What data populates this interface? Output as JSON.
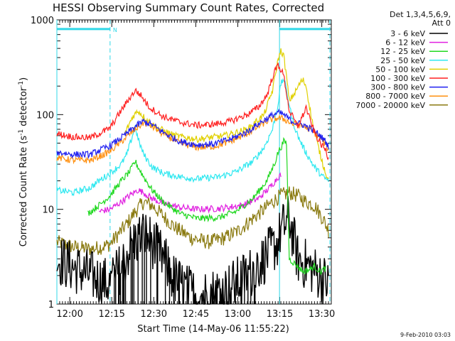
{
  "chart_data": {
    "type": "line",
    "title": "HESSI Observing Summary Count Rates, Corrected",
    "xlabel": "Start Time (14-May-06 11:55:22)",
    "ylabel_main": "Corrected Count Rate (s",
    "ylabel_sup1": "-1",
    "ylabel_mid": " detector",
    "ylabel_sup2": "-1",
    "ylabel_end": ")",
    "y_scale": "log",
    "ylim": [
      1,
      1000
    ],
    "xlim_min": [
      0,
      98
    ],
    "y_ticks": [
      {
        "value": 1,
        "label": "1"
      },
      {
        "value": 10,
        "label": "10"
      },
      {
        "value": 100,
        "label": "100"
      },
      {
        "value": 1000,
        "label": "1000"
      }
    ],
    "x_ticks": [
      {
        "value": 4.6,
        "label": "12:00"
      },
      {
        "value": 19.6,
        "label": "12:15"
      },
      {
        "value": 34.6,
        "label": "12:30"
      },
      {
        "value": 49.6,
        "label": "12:45"
      },
      {
        "value": 64.6,
        "label": "13:00"
      },
      {
        "value": 79.6,
        "label": "13:15"
      },
      {
        "value": 94.6,
        "label": "13:30"
      }
    ],
    "legend_header_1": "Det 1,3,4,5,6,9,",
    "legend_header_2": "Att 0",
    "footer_date": "9-Feb-2010 03:03",
    "status_marks": [
      {
        "label": "N",
        "x": [
          0,
          19
        ],
        "y": 800,
        "color": "#30d8e8"
      },
      {
        "label": "",
        "x": [
          79.5,
          97.5
        ],
        "y": 800,
        "color": "#30d8e8"
      }
    ],
    "event_times": [
      0,
      19,
      79.5,
      97.5
    ],
    "series": [
      {
        "name": "3 - 6 keV",
        "color": "#000000",
        "anchors": [
          [
            0,
            3
          ],
          [
            5,
            2.5
          ],
          [
            12,
            2
          ],
          [
            19,
            1.6
          ],
          [
            23,
            2.5
          ],
          [
            27,
            4.3
          ],
          [
            31,
            5.5
          ],
          [
            34,
            4.5
          ],
          [
            38,
            3
          ],
          [
            42,
            1.8
          ],
          [
            50,
            1.2
          ],
          [
            60,
            1.4
          ],
          [
            68,
            2
          ],
          [
            74,
            3
          ],
          [
            79,
            4.5
          ],
          [
            80,
            6
          ],
          [
            83,
            8
          ],
          [
            86,
            3
          ],
          [
            90,
            2.5
          ],
          [
            94,
            2
          ],
          [
            97,
            1.6
          ]
        ]
      },
      {
        "name": "6 - 12 keV",
        "color": "#e020e0",
        "anchors": [
          [
            15,
            9.5
          ],
          [
            19,
            10
          ],
          [
            23,
            12
          ],
          [
            26,
            14
          ],
          [
            29,
            16
          ],
          [
            31,
            15
          ],
          [
            34,
            13
          ],
          [
            38,
            11.5
          ],
          [
            44,
            10.5
          ],
          [
            50,
            10
          ],
          [
            58,
            10.2
          ],
          [
            66,
            11
          ],
          [
            72,
            13
          ],
          [
            76,
            17
          ],
          [
            78,
            20
          ],
          [
            79,
            22
          ],
          [
            80,
            23
          ]
        ]
      },
      {
        "name": "12 - 25 keV",
        "color": "#20d820",
        "anchors": [
          [
            11,
            9
          ],
          [
            15,
            11
          ],
          [
            19,
            14
          ],
          [
            23,
            20
          ],
          [
            26,
            25
          ],
          [
            28,
            32
          ],
          [
            29,
            28
          ],
          [
            31,
            22
          ],
          [
            34,
            16
          ],
          [
            38,
            12
          ],
          [
            44,
            9
          ],
          [
            50,
            8
          ],
          [
            58,
            8.2
          ],
          [
            64,
            9.5
          ],
          [
            70,
            13
          ],
          [
            75,
            20
          ],
          [
            78,
            32
          ],
          [
            79,
            40
          ],
          [
            80,
            45
          ],
          [
            81,
            52
          ],
          [
            82,
            50
          ],
          [
            83,
            3
          ],
          [
            86,
            2.5
          ],
          [
            88,
            2.2
          ],
          [
            90,
            2.3
          ],
          [
            92,
            2.5
          ],
          [
            94,
            2.2
          ],
          [
            96,
            2.4
          ]
        ]
      },
      {
        "name": "25 - 50 keV",
        "color": "#30e8f0",
        "anchors": [
          [
            0,
            16
          ],
          [
            6,
            15
          ],
          [
            12,
            17
          ],
          [
            15,
            20
          ],
          [
            19,
            24
          ],
          [
            23,
            30
          ],
          [
            25,
            38
          ],
          [
            27,
            60
          ],
          [
            28,
            75
          ],
          [
            29,
            55
          ],
          [
            31,
            38
          ],
          [
            34,
            28
          ],
          [
            38,
            24
          ],
          [
            44,
            22
          ],
          [
            50,
            21
          ],
          [
            58,
            22
          ],
          [
            64,
            25
          ],
          [
            70,
            32
          ],
          [
            74,
            45
          ],
          [
            77,
            70
          ],
          [
            79,
            130
          ],
          [
            80,
            210
          ],
          [
            81,
            240
          ],
          [
            82,
            180
          ],
          [
            84,
            90
          ],
          [
            86,
            60
          ],
          [
            88,
            45
          ],
          [
            90,
            35
          ],
          [
            92,
            28
          ],
          [
            95,
            22
          ],
          [
            97,
            20
          ]
        ]
      },
      {
        "name": "50 - 100 keV",
        "color": "#e0d000",
        "anchors": [
          [
            24,
            60
          ],
          [
            27,
            95
          ],
          [
            29,
            110
          ],
          [
            31,
            95
          ],
          [
            35,
            75
          ],
          [
            42,
            60
          ],
          [
            50,
            55
          ],
          [
            60,
            60
          ],
          [
            68,
            70
          ],
          [
            74,
            100
          ],
          [
            77,
            180
          ],
          [
            79,
            380
          ],
          [
            80,
            470
          ],
          [
            81,
            420
          ],
          [
            82,
            250
          ],
          [
            83,
            140
          ],
          [
            85,
            170
          ],
          [
            87,
            220
          ],
          [
            88,
            230
          ],
          [
            89,
            200
          ],
          [
            91,
            90
          ],
          [
            93,
            50
          ],
          [
            95,
            30
          ],
          [
            97,
            20
          ]
        ]
      },
      {
        "name": "100 - 300 keV",
        "color": "#ff2020",
        "anchors": [
          [
            0,
            63
          ],
          [
            6,
            58
          ],
          [
            12,
            57
          ],
          [
            16,
            65
          ],
          [
            19,
            72
          ],
          [
            22,
            100
          ],
          [
            26,
            150
          ],
          [
            28,
            180
          ],
          [
            30,
            160
          ],
          [
            33,
            120
          ],
          [
            38,
            95
          ],
          [
            44,
            83
          ],
          [
            50,
            77
          ],
          [
            56,
            79
          ],
          [
            62,
            85
          ],
          [
            68,
            100
          ],
          [
            72,
            120
          ],
          [
            75,
            160
          ],
          [
            77,
            250
          ],
          [
            79,
            340
          ],
          [
            81,
            260
          ],
          [
            83,
            110
          ],
          [
            86,
            75
          ],
          [
            88,
            100
          ],
          [
            89,
            120
          ],
          [
            90,
            95
          ],
          [
            92,
            65
          ],
          [
            94,
            50
          ],
          [
            96,
            42
          ],
          [
            97,
            34
          ]
        ]
      },
      {
        "name": "300 - 800 keV",
        "color": "#2020f0",
        "anchors": [
          [
            0,
            40
          ],
          [
            6,
            38
          ],
          [
            12,
            38
          ],
          [
            16,
            43
          ],
          [
            19,
            47
          ],
          [
            24,
            60
          ],
          [
            28,
            75
          ],
          [
            31,
            85
          ],
          [
            34,
            78
          ],
          [
            38,
            65
          ],
          [
            44,
            52
          ],
          [
            50,
            48
          ],
          [
            56,
            49
          ],
          [
            62,
            55
          ],
          [
            68,
            66
          ],
          [
            72,
            80
          ],
          [
            76,
            95
          ],
          [
            79,
            105
          ],
          [
            81,
            100
          ],
          [
            84,
            85
          ],
          [
            88,
            78
          ],
          [
            91,
            70
          ],
          [
            94,
            60
          ],
          [
            96,
            52
          ],
          [
            97,
            46
          ]
        ]
      },
      {
        "name": "800 - 7000 keV",
        "color": "#ff9010",
        "anchors": [
          [
            0,
            35
          ],
          [
            6,
            33
          ],
          [
            12,
            33
          ],
          [
            16,
            37
          ],
          [
            19,
            41
          ],
          [
            24,
            55
          ],
          [
            28,
            70
          ],
          [
            31,
            82
          ],
          [
            34,
            75
          ],
          [
            38,
            62
          ],
          [
            44,
            50
          ],
          [
            50,
            45
          ],
          [
            56,
            46
          ],
          [
            62,
            52
          ],
          [
            68,
            63
          ],
          [
            72,
            75
          ],
          [
            76,
            88
          ],
          [
            79,
            92
          ],
          [
            81,
            90
          ],
          [
            84,
            80
          ],
          [
            88,
            76
          ],
          [
            91,
            68
          ],
          [
            94,
            57
          ],
          [
            96,
            48
          ],
          [
            97,
            42
          ]
        ]
      },
      {
        "name": "7000 - 20000 keV",
        "color": "#8a7a10",
        "anchors": [
          [
            0,
            4.5
          ],
          [
            6,
            4
          ],
          [
            12,
            3.8
          ],
          [
            16,
            4
          ],
          [
            19,
            4.3
          ],
          [
            22,
            5.5
          ],
          [
            25,
            7
          ],
          [
            28,
            9.5
          ],
          [
            31,
            12
          ],
          [
            34,
            11
          ],
          [
            38,
            8.5
          ],
          [
            42,
            6.5
          ],
          [
            48,
            5
          ],
          [
            54,
            4.5
          ],
          [
            60,
            5
          ],
          [
            65,
            6
          ],
          [
            70,
            8
          ],
          [
            74,
            10
          ],
          [
            77,
            12
          ],
          [
            80,
            14
          ],
          [
            83,
            15
          ],
          [
            86,
            14
          ],
          [
            89,
            12
          ],
          [
            92,
            11
          ],
          [
            95,
            8
          ],
          [
            97,
            6
          ]
        ]
      }
    ]
  }
}
